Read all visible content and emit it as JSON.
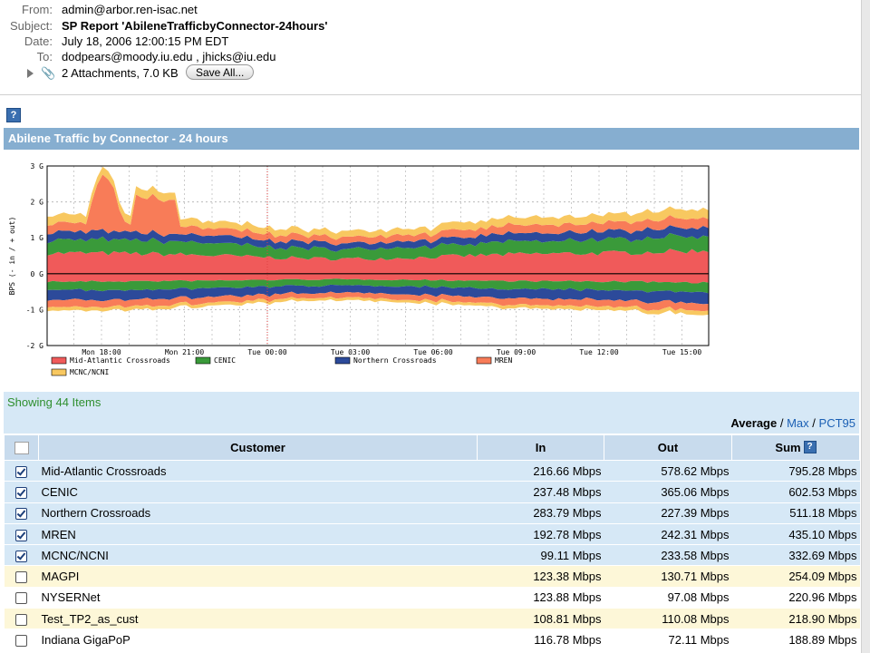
{
  "header": {
    "from_label": "From:",
    "from": "admin@arbor.ren-isac.net",
    "subject_label": "Subject:",
    "subject": "SP Report 'AbileneTrafficbyConnector-24hours'",
    "date_label": "Date:",
    "date": "July 18, 2006 12:00:15 PM EDT",
    "to_label": "To:",
    "to": "dodpears@moody.iu.edu ,   jhicks@iu.edu",
    "attachments": "2 Attachments, 7.0 KB",
    "save_all": "Save All..."
  },
  "help_icon": "?",
  "report_title": "Abilene Traffic by Connector - 24 hours",
  "chart_data": {
    "type": "area",
    "title": "",
    "xlabel": "",
    "ylabel": "BPS (- in / + out)",
    "y_ticks": [
      "3 G",
      "2 G",
      "1 G",
      "0 G",
      "-1 G",
      "-2 G"
    ],
    "ylim_gbps": [
      -2,
      3
    ],
    "x_ticks": [
      "Mon 18:00",
      "Mon 21:00",
      "Tue 00:00",
      "Tue 03:00",
      "Tue 06:00",
      "Tue 09:00",
      "Tue 12:00",
      "Tue 15:00"
    ],
    "marker": "Tue 00:00",
    "grid": true,
    "legend_position": "bottom",
    "series": [
      {
        "name": "Mid-Atlantic Crossroads",
        "color": "#f05a5a",
        "out_avg_gbps": 0.58,
        "in_avg_gbps": 0.22
      },
      {
        "name": "CENIC",
        "color": "#3a9a3a",
        "out_avg_gbps": 0.37,
        "in_avg_gbps": 0.24
      },
      {
        "name": "Northern Crossroads",
        "color": "#2c4a9a",
        "out_avg_gbps": 0.23,
        "in_avg_gbps": 0.28
      },
      {
        "name": "MREN",
        "color": "#f87c58",
        "out_avg_gbps": 0.24,
        "in_avg_gbps": 0.19
      },
      {
        "name": "MCNC/NCNI",
        "color": "#f8c860",
        "out_avg_gbps": 0.23,
        "in_avg_gbps": 0.1
      }
    ]
  },
  "showing": "Showing 44 Items",
  "stat_modes": {
    "average": "Average",
    "max": "Max",
    "pct95": "PCT95",
    "sep": "/"
  },
  "table": {
    "columns": [
      "Customer",
      "In",
      "Out",
      "Sum"
    ],
    "rows": [
      {
        "name": "Mid-Atlantic Crossroads",
        "in": "216.66 Mbps",
        "out": "578.62 Mbps",
        "sum": "795.28 Mbps",
        "checked": true
      },
      {
        "name": "CENIC",
        "in": "237.48 Mbps",
        "out": "365.06 Mbps",
        "sum": "602.53 Mbps",
        "checked": true
      },
      {
        "name": "Northern Crossroads",
        "in": "283.79 Mbps",
        "out": "227.39 Mbps",
        "sum": "511.18 Mbps",
        "checked": true
      },
      {
        "name": "MREN",
        "in": "192.78 Mbps",
        "out": "242.31 Mbps",
        "sum": "435.10 Mbps",
        "checked": true
      },
      {
        "name": "MCNC/NCNI",
        "in": "99.11 Mbps",
        "out": "233.58 Mbps",
        "sum": "332.69 Mbps",
        "checked": true
      },
      {
        "name": "MAGPI",
        "in": "123.38 Mbps",
        "out": "130.71 Mbps",
        "sum": "254.09 Mbps",
        "checked": false
      },
      {
        "name": "NYSERNet",
        "in": "123.88 Mbps",
        "out": "97.08 Mbps",
        "sum": "220.96 Mbps",
        "checked": false
      },
      {
        "name": "Test_TP2_as_cust",
        "in": "108.81 Mbps",
        "out": "110.08 Mbps",
        "sum": "218.90 Mbps",
        "checked": false
      },
      {
        "name": "Indiana GigaPoP",
        "in": "116.78 Mbps",
        "out": "72.11 Mbps",
        "sum": "188.89 Mbps",
        "checked": false
      }
    ]
  }
}
